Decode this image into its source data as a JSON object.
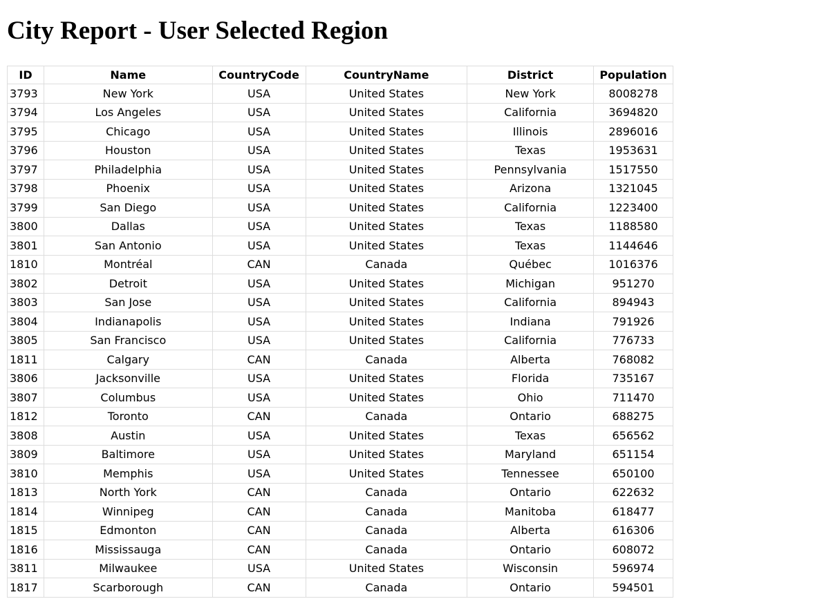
{
  "page": {
    "title": "City Report - User Selected Region"
  },
  "table": {
    "headers": [
      "ID",
      "Name",
      "CountryCode",
      "CountryName",
      "District",
      "Population"
    ],
    "rows": [
      [
        "3793",
        "New York",
        "USA",
        "United States",
        "New York",
        "8008278"
      ],
      [
        "3794",
        "Los Angeles",
        "USA",
        "United States",
        "California",
        "3694820"
      ],
      [
        "3795",
        "Chicago",
        "USA",
        "United States",
        "Illinois",
        "2896016"
      ],
      [
        "3796",
        "Houston",
        "USA",
        "United States",
        "Texas",
        "1953631"
      ],
      [
        "3797",
        "Philadelphia",
        "USA",
        "United States",
        "Pennsylvania",
        "1517550"
      ],
      [
        "3798",
        "Phoenix",
        "USA",
        "United States",
        "Arizona",
        "1321045"
      ],
      [
        "3799",
        "San Diego",
        "USA",
        "United States",
        "California",
        "1223400"
      ],
      [
        "3800",
        "Dallas",
        "USA",
        "United States",
        "Texas",
        "1188580"
      ],
      [
        "3801",
        "San Antonio",
        "USA",
        "United States",
        "Texas",
        "1144646"
      ],
      [
        "1810",
        "Montréal",
        "CAN",
        "Canada",
        "Québec",
        "1016376"
      ],
      [
        "3802",
        "Detroit",
        "USA",
        "United States",
        "Michigan",
        "951270"
      ],
      [
        "3803",
        "San Jose",
        "USA",
        "United States",
        "California",
        "894943"
      ],
      [
        "3804",
        "Indianapolis",
        "USA",
        "United States",
        "Indiana",
        "791926"
      ],
      [
        "3805",
        "San Francisco",
        "USA",
        "United States",
        "California",
        "776733"
      ],
      [
        "1811",
        "Calgary",
        "CAN",
        "Canada",
        "Alberta",
        "768082"
      ],
      [
        "3806",
        "Jacksonville",
        "USA",
        "United States",
        "Florida",
        "735167"
      ],
      [
        "3807",
        "Columbus",
        "USA",
        "United States",
        "Ohio",
        "711470"
      ],
      [
        "1812",
        "Toronto",
        "CAN",
        "Canada",
        "Ontario",
        "688275"
      ],
      [
        "3808",
        "Austin",
        "USA",
        "United States",
        "Texas",
        "656562"
      ],
      [
        "3809",
        "Baltimore",
        "USA",
        "United States",
        "Maryland",
        "651154"
      ],
      [
        "3810",
        "Memphis",
        "USA",
        "United States",
        "Tennessee",
        "650100"
      ],
      [
        "1813",
        "North York",
        "CAN",
        "Canada",
        "Ontario",
        "622632"
      ],
      [
        "1814",
        "Winnipeg",
        "CAN",
        "Canada",
        "Manitoba",
        "618477"
      ],
      [
        "1815",
        "Edmonton",
        "CAN",
        "Canada",
        "Alberta",
        "616306"
      ],
      [
        "1816",
        "Mississauga",
        "CAN",
        "Canada",
        "Ontario",
        "608072"
      ],
      [
        "3811",
        "Milwaukee",
        "USA",
        "United States",
        "Wisconsin",
        "596974"
      ],
      [
        "1817",
        "Scarborough",
        "CAN",
        "Canada",
        "Ontario",
        "594501"
      ]
    ]
  }
}
